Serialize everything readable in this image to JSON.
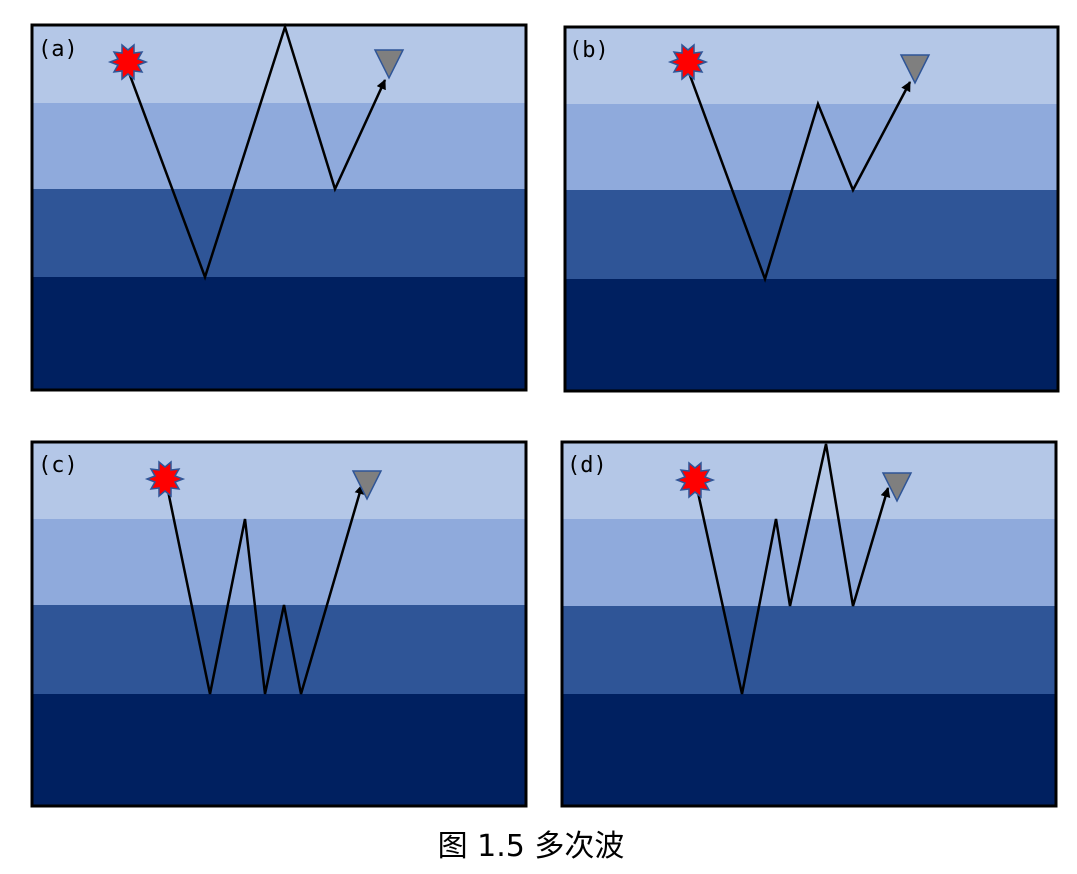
{
  "caption": "图 1.5 多次波",
  "colors": {
    "layer_1": "#b4c7e7",
    "layer_2": "#8faadc",
    "layer_3": "#2f5597",
    "layer_4": "#002060",
    "frame": "#000000",
    "ray": "#000000",
    "source_fill": "#ff0000",
    "source_stroke": "#2f5597",
    "receiver_fill": "#7f7f7f",
    "receiver_stroke": "#2f5597"
  },
  "panels": [
    {
      "label": "(a)",
      "description_icon": "source-star / receiver-triangle"
    },
    {
      "label": "(b)",
      "description_icon": "source-star / receiver-triangle"
    },
    {
      "label": "(c)",
      "description_icon": "source-star / receiver-triangle"
    },
    {
      "label": "(d)",
      "description_icon": "source-star / receiver-triangle"
    }
  ]
}
